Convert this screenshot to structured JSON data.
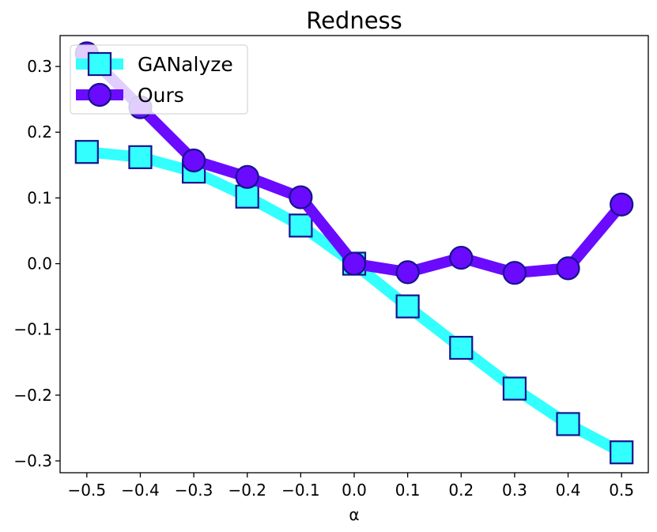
{
  "chart_data": {
    "type": "line",
    "title": "Redness",
    "xlabel": "α",
    "ylabel": "",
    "x": [
      -0.5,
      -0.4,
      -0.3,
      -0.2,
      -0.1,
      0.0,
      0.1,
      0.2,
      0.3,
      0.4,
      0.5
    ],
    "x_tick_labels": [
      "−0.5",
      "−0.4",
      "−0.3",
      "−0.2",
      "−0.1",
      "0.0",
      "0.1",
      "0.2",
      "0.3",
      "0.4",
      "0.5"
    ],
    "y_ticks": [
      -0.3,
      -0.2,
      -0.1,
      0.0,
      0.1,
      0.2,
      0.3
    ],
    "y_tick_labels": [
      "−0.3",
      "−0.2",
      "−0.1",
      "0.0",
      "0.1",
      "0.2",
      "0.3"
    ],
    "xlim": [
      -0.55,
      0.55
    ],
    "ylim": [
      -0.318,
      0.347
    ],
    "grid": false,
    "legend_placement": "top-left",
    "series": [
      {
        "name": "GANalyze",
        "values": [
          0.17,
          0.162,
          0.14,
          0.102,
          0.058,
          0.0,
          -0.065,
          -0.128,
          -0.19,
          -0.244,
          -0.287
        ],
        "line_color": "#33ffff",
        "marker": "square",
        "marker_face": "#33ffff",
        "marker_edge": "#14148c"
      },
      {
        "name": "Ours",
        "values": [
          0.32,
          0.238,
          0.157,
          0.132,
          0.101,
          0.0,
          -0.013,
          0.009,
          -0.014,
          -0.007,
          0.09
        ],
        "line_color": "#6a0aff",
        "marker": "circle",
        "marker_face": "#6a0aff",
        "marker_edge": "#14148c"
      }
    ]
  }
}
